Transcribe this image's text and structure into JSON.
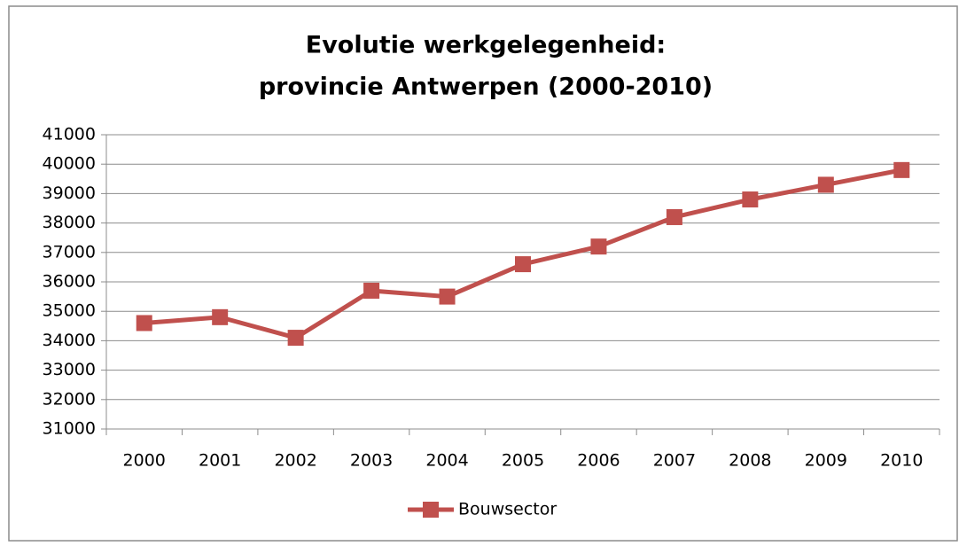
{
  "chart_data": {
    "type": "line",
    "title": [
      "Evolutie werkgelegenheid:",
      "provincie Antwerpen (2000-2010)"
    ],
    "categories": [
      "2000",
      "2001",
      "2002",
      "2003",
      "2004",
      "2005",
      "2006",
      "2007",
      "2008",
      "2009",
      "2010"
    ],
    "series": [
      {
        "name": "Bouwsector",
        "color": "#c0504d",
        "values": [
          34600,
          34800,
          34100,
          35700,
          35500,
          36600,
          37200,
          38200,
          38800,
          39300,
          39800
        ]
      }
    ],
    "ylim": [
      31000,
      41000
    ],
    "yticks": [
      31000,
      32000,
      33000,
      34000,
      35000,
      36000,
      37000,
      38000,
      39000,
      40000,
      41000
    ],
    "grid": true,
    "legend": "bottom"
  }
}
